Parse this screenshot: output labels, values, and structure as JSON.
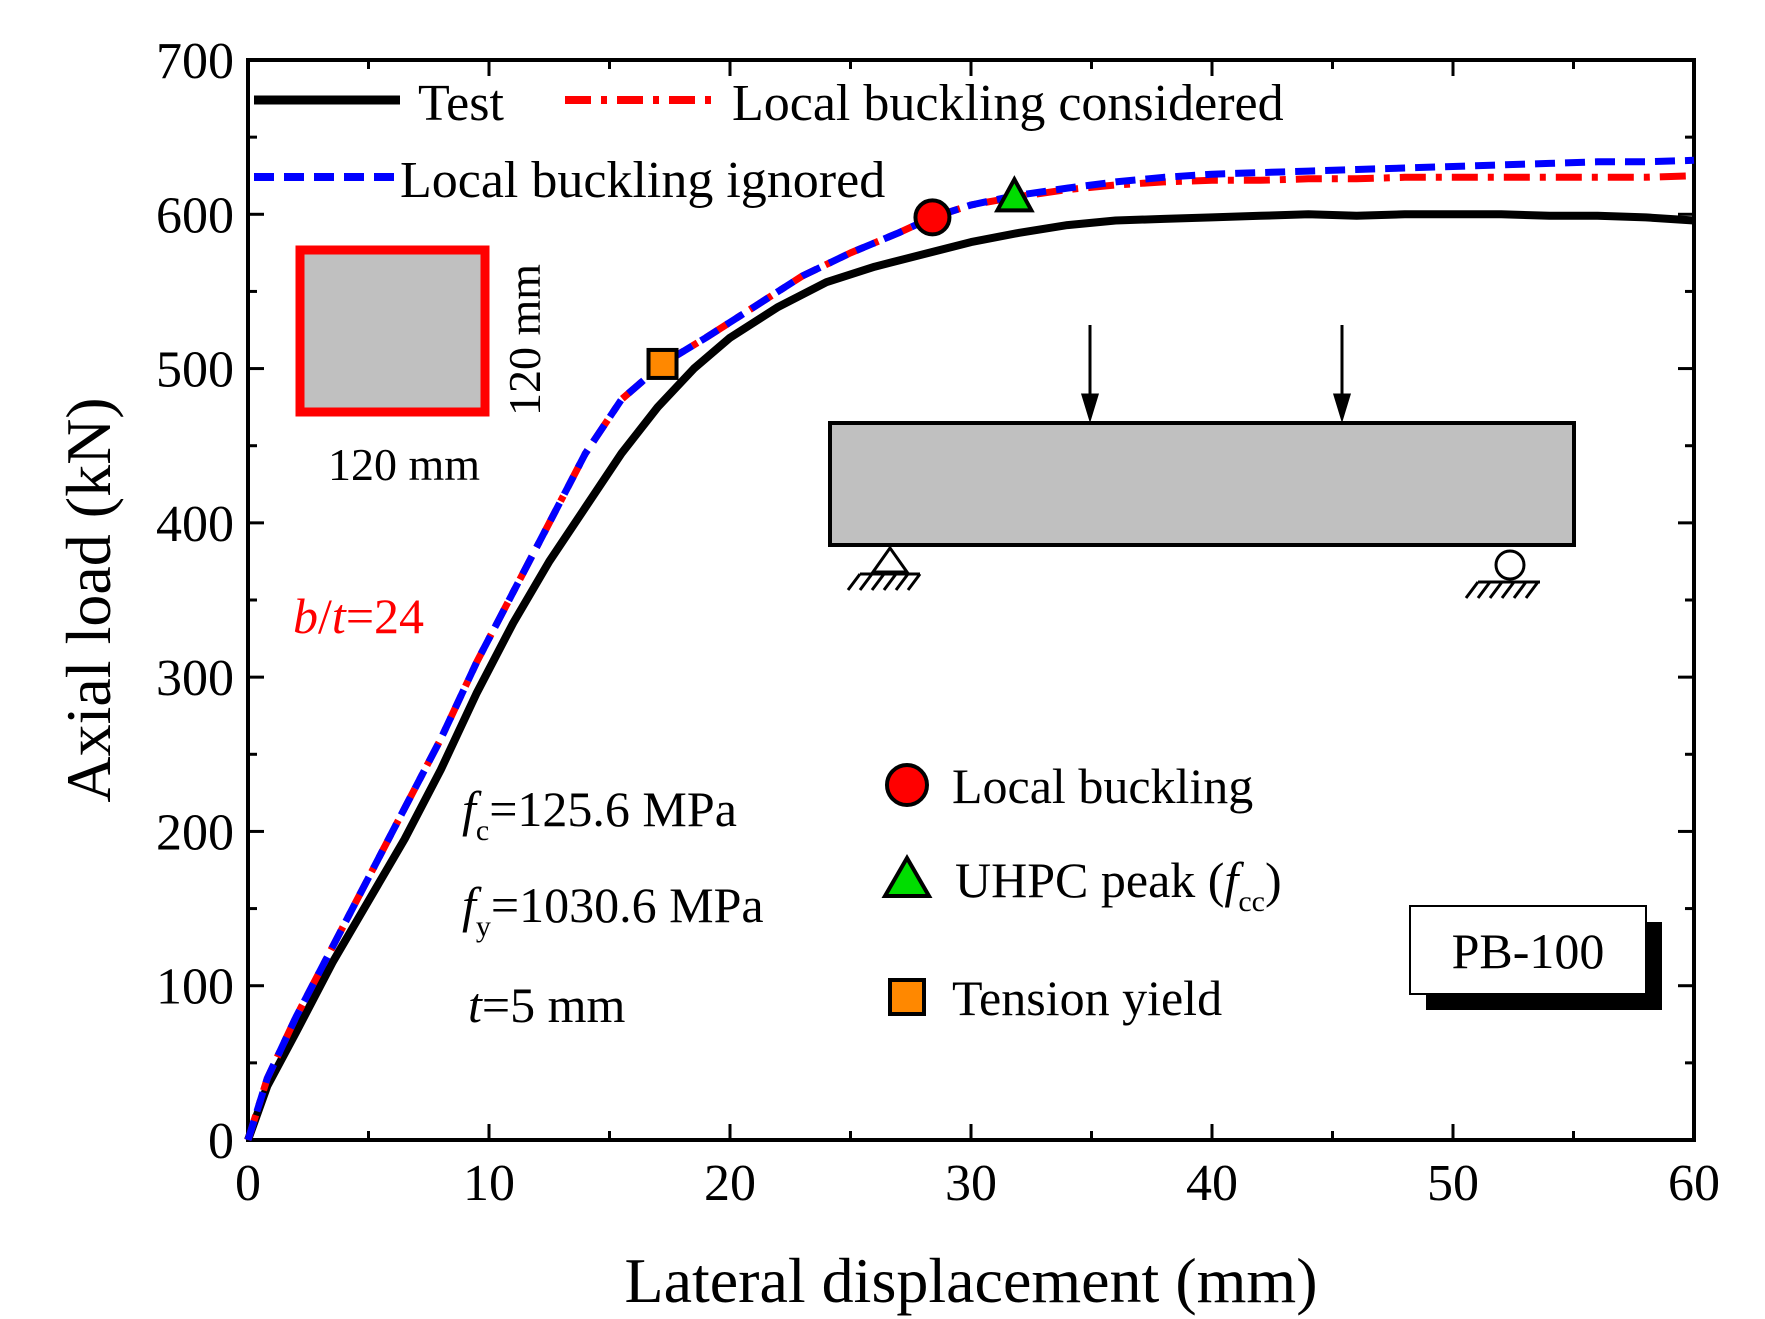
{
  "chart_data": {
    "type": "line",
    "xlabel": "Lateral displacement (mm)",
    "ylabel": "Axial load (kN)",
    "xlim": [
      0,
      60
    ],
    "ylim": [
      0,
      700
    ],
    "xticks": [
      0,
      10,
      20,
      30,
      40,
      50,
      60
    ],
    "yticks": [
      0,
      100,
      200,
      300,
      400,
      500,
      600,
      700
    ],
    "grid": false,
    "legend_position": "top",
    "series": [
      {
        "name": "Test",
        "color": "#000000",
        "style": "solid",
        "x": [
          0,
          0.8,
          2,
          3.5,
          5,
          6.5,
          8,
          9.5,
          11,
          12.5,
          14,
          15.5,
          17,
          18.5,
          20,
          22,
          24,
          26,
          28,
          30,
          32,
          34,
          36,
          38,
          40,
          42,
          44,
          46,
          48,
          50,
          52,
          54,
          56,
          58,
          60
        ],
        "y": [
          0,
          35,
          70,
          115,
          155,
          195,
          240,
          290,
          335,
          375,
          410,
          445,
          475,
          500,
          520,
          540,
          556,
          566,
          574,
          582,
          588,
          593,
          596,
          597,
          598,
          599,
          600,
          599,
          600,
          600,
          600,
          599,
          599,
          598,
          596
        ]
      },
      {
        "name": "Local buckling considered",
        "color": "#ff0000",
        "style": "dashdot",
        "x": [
          0,
          0.8,
          2,
          3.5,
          5,
          6.5,
          8,
          9.5,
          11,
          12.5,
          14,
          15.5,
          17.2,
          19,
          21,
          23,
          25,
          27,
          28.4,
          30,
          31.8,
          34,
          36,
          38,
          40,
          42,
          44,
          46,
          48,
          50,
          52,
          54,
          56,
          58,
          60
        ],
        "y": [
          0,
          40,
          80,
          125,
          170,
          215,
          260,
          310,
          355,
          400,
          445,
          480,
          503,
          520,
          540,
          560,
          575,
          588,
          598,
          606,
          611,
          616,
          619,
          621,
          622,
          622,
          623,
          623,
          624,
          624,
          624,
          624,
          624,
          624,
          625
        ]
      },
      {
        "name": "Local buckling ignored",
        "color": "#0000ff",
        "style": "dashed",
        "x": [
          0,
          0.8,
          2,
          3.5,
          5,
          6.5,
          8,
          9.5,
          11,
          12.5,
          14,
          15.5,
          17.2,
          19,
          21,
          23,
          25,
          27,
          28.4,
          30,
          31.8,
          34,
          36,
          38,
          40,
          42,
          44,
          46,
          48,
          50,
          52,
          54,
          56,
          58,
          60
        ],
        "y": [
          0,
          40,
          80,
          125,
          170,
          215,
          260,
          310,
          355,
          400,
          445,
          480,
          503,
          520,
          540,
          560,
          575,
          588,
          598,
          606,
          612,
          617,
          621,
          624,
          626,
          627,
          628,
          629,
          630,
          631,
          632,
          633,
          634,
          634,
          635
        ]
      }
    ],
    "markers": [
      {
        "name": "Local buckling",
        "shape": "circle",
        "color": "#ff0000",
        "x": 28.4,
        "y": 598
      },
      {
        "name": "UHPC peak",
        "shape": "triangle",
        "color": "#00dd00",
        "x": 31.8,
        "y": 611
      },
      {
        "name": "Tension yield",
        "shape": "square",
        "color": "#ff8800",
        "x": 17.2,
        "y": 503
      }
    ],
    "legend": {
      "test": "Test",
      "considered": "Local buckling considered",
      "ignored": "Local buckling ignored"
    },
    "marker_legend": {
      "local_buckling": "Local buckling",
      "uhpc_peak_prefix": "UHPC peak (",
      "uhpc_peak_var": "f",
      "uhpc_peak_sub": "cc",
      "uhpc_peak_suffix": ")",
      "tension_yield": "Tension yield"
    },
    "annotations": {
      "fc_var": "f",
      "fc_sub": "c",
      "fc_value": "=125.6 MPa",
      "fy_var": "f",
      "fy_sub": "y",
      "fy_value": "=1030.6 MPa",
      "t_var": "t",
      "t_value": "=5 mm",
      "bt_var1": "b",
      "bt_slash": "/",
      "bt_var2": "t",
      "bt_value": "=24",
      "section_width": "120 mm",
      "section_height": "120 mm",
      "specimen": "PB-100"
    },
    "colors": {
      "annotation_accent": "#ff0000",
      "section_fill": "#c0c0c0",
      "beam_fill": "#c0c0c0"
    }
  }
}
